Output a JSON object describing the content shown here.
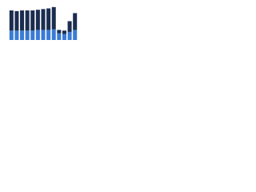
{
  "chart_data": {
    "type": "stacked_bar",
    "categories": [
      null,
      null,
      null,
      null,
      null,
      null,
      null,
      null,
      null,
      null,
      null,
      null,
      null
    ],
    "series": [
      {
        "color": "#3a7bd5",
        "values": [
          14,
          14,
          14,
          14,
          14,
          15,
          15,
          15,
          16,
          10,
          9,
          12,
          15
        ]
      },
      {
        "color": "#1b2d4f",
        "values": [
          30,
          29,
          30,
          30,
          30,
          30,
          31,
          32,
          33,
          5,
          5,
          16,
          25
        ]
      }
    ],
    "ylim": [
      0,
      50
    ]
  }
}
